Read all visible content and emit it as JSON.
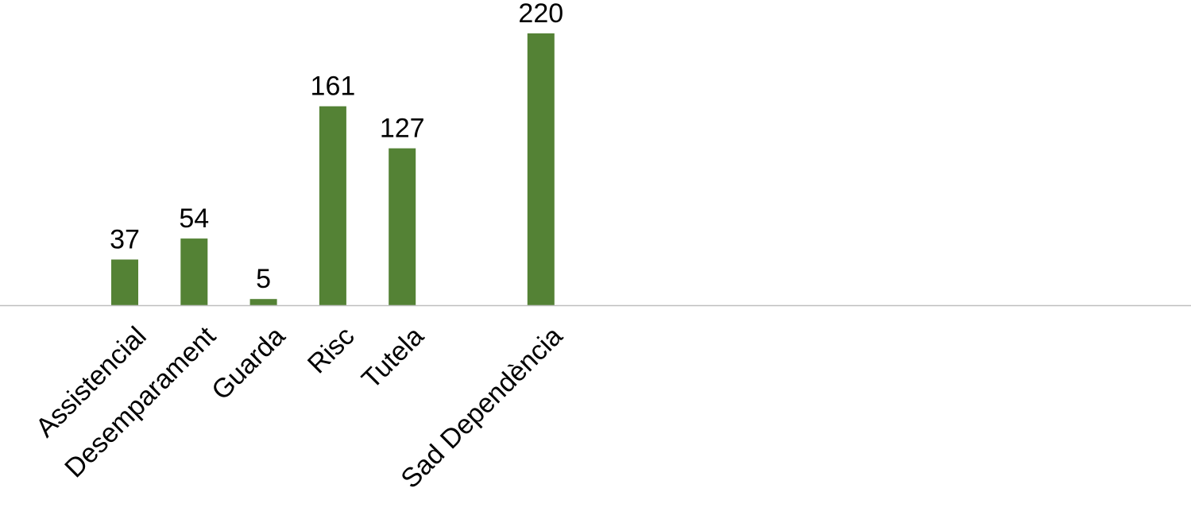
{
  "chart_data": {
    "type": "bar",
    "categories": [
      "Assistencial",
      "Desemparament",
      "Guarda",
      "Risc",
      "Tutela",
      "",
      "Sad Dependència"
    ],
    "values": [
      37,
      54,
      5,
      161,
      127,
      null,
      220
    ],
    "title": "",
    "xlabel": "",
    "ylabel": "",
    "ylim": [
      0,
      220
    ],
    "grid": false,
    "legend": "none",
    "bar_color": "#548235",
    "axis_color": "#bfbfbf",
    "data_labels": true
  }
}
